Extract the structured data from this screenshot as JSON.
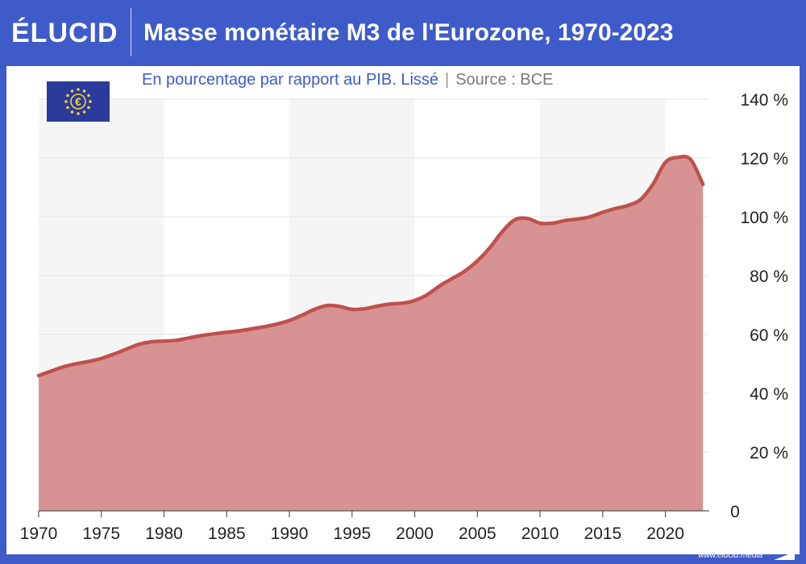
{
  "header": {
    "logo": "ÉLUCID",
    "title": "Masse monétaire M3 de l'Eurozone, 1970-2023"
  },
  "subtitle": {
    "main": "En pourcentage par rapport au PIB. Lissé",
    "separator": "|",
    "source": "Source : BCE"
  },
  "footer": {
    "url": "www.elucid.media"
  },
  "flag_icon": "eu-flag-icon",
  "colors": {
    "header_bg": "#3f5bc9",
    "line": "#c0504d",
    "area": "#d79393",
    "band": "#f5f5f5"
  },
  "chart_data": {
    "type": "area",
    "title": "Masse monétaire M3 de l'Eurozone, 1970-2023",
    "subtitle": "En pourcentage par rapport au PIB. Lissé",
    "xlabel": "",
    "ylabel": "",
    "xlim": [
      1970,
      2023.5
    ],
    "ylim": [
      0,
      140
    ],
    "x_ticks": [
      1970,
      1975,
      1980,
      1985,
      1990,
      1995,
      2000,
      2005,
      2010,
      2015,
      2020
    ],
    "y_ticks": [
      {
        "value": 0,
        "label": "0"
      },
      {
        "value": 20,
        "label": "20 %"
      },
      {
        "value": 40,
        "label": "40 %"
      },
      {
        "value": 60,
        "label": "60 %"
      },
      {
        "value": 80,
        "label": "80 %"
      },
      {
        "value": 100,
        "label": "100 %"
      },
      {
        "value": 120,
        "label": "120 %"
      },
      {
        "value": 140,
        "label": "140 %"
      }
    ],
    "y_axis_side": "right",
    "shaded_bands": [
      [
        1970,
        1980
      ],
      [
        1990,
        2000
      ],
      [
        2010,
        2020
      ]
    ],
    "series": [
      {
        "x": [
          1970,
          1971,
          1972,
          1973,
          1974,
          1975,
          1976,
          1977,
          1978,
          1979,
          1980,
          1981,
          1982,
          1983,
          1984,
          1985,
          1986,
          1987,
          1988,
          1989,
          1990,
          1991,
          1992,
          1993,
          1994,
          1995,
          1996,
          1997,
          1998,
          1999,
          2000,
          2001,
          2002,
          2003,
          2004,
          2005,
          2006,
          2007,
          2008,
          2009,
          2010,
          2011,
          2012,
          2013,
          2014,
          2015,
          2016,
          2017,
          2018,
          2019,
          2020,
          2021,
          2022,
          2023
        ],
        "y": [
          46,
          47.5,
          49,
          50,
          50.8,
          51.8,
          53.3,
          55,
          56.6,
          57.5,
          57.7,
          58,
          58.8,
          59.6,
          60.2,
          60.7,
          61.2,
          61.9,
          62.6,
          63.5,
          64.7,
          66.5,
          68.5,
          69.8,
          69.5,
          68.5,
          68.7,
          69.6,
          70.3,
          70.6,
          71.5,
          73.5,
          76.5,
          79,
          81.5,
          85,
          89.5,
          95,
          99,
          99.4,
          97.8,
          97.8,
          98.7,
          99.2,
          100,
          101.5,
          102.8,
          103.8,
          105.8,
          111,
          118.5,
          120.2,
          119.5,
          111
        ]
      }
    ]
  }
}
